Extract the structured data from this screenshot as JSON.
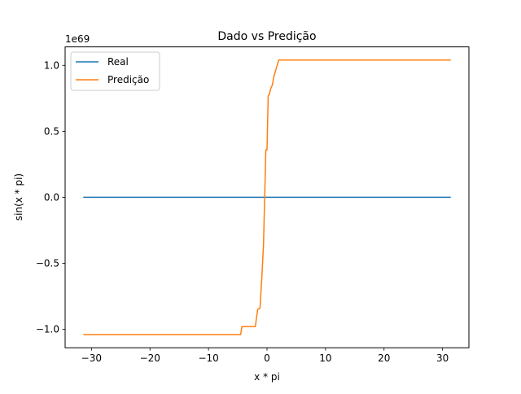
{
  "chart_data": {
    "type": "line",
    "title": "Dado vs Predição",
    "xlabel": "x * pi",
    "ylabel": "sin(x * pi)",
    "y_offset_text": "1e69",
    "xlim": [
      -34.5,
      34.5
    ],
    "ylim": [
      -1.14,
      1.14
    ],
    "xticks": [
      -30,
      -20,
      -10,
      0,
      10,
      20,
      30
    ],
    "xtick_labels": [
      "−30",
      "−20",
      "−10",
      "0",
      "10",
      "20",
      "30"
    ],
    "yticks": [
      -1.0,
      -0.5,
      0.0,
      0.5,
      1.0
    ],
    "ytick_labels": [
      "−1.0",
      "−0.5",
      "0.0",
      "0.5",
      "1.0"
    ],
    "legend_position": "upper-left",
    "grid": false,
    "series": [
      {
        "name": "Real",
        "color": "#1f77b4",
        "x": [
          -31.4,
          31.4
        ],
        "y": [
          0.0,
          0.0
        ]
      },
      {
        "name": "Predição",
        "color": "#ff7f0e",
        "x": [
          -31.4,
          -4.5,
          -4.3,
          -2.0,
          -1.6,
          -1.2,
          -0.9,
          -0.6,
          -0.4,
          -0.2,
          0.0,
          0.2,
          0.4,
          0.6,
          0.9,
          1.2,
          1.6,
          2.0,
          31.4
        ],
        "y": [
          -1.04,
          -1.04,
          -0.98,
          -0.98,
          -0.85,
          -0.84,
          -0.62,
          -0.36,
          0.0,
          0.36,
          0.36,
          0.77,
          0.78,
          0.82,
          0.85,
          0.92,
          0.98,
          1.04,
          1.04
        ]
      }
    ]
  }
}
